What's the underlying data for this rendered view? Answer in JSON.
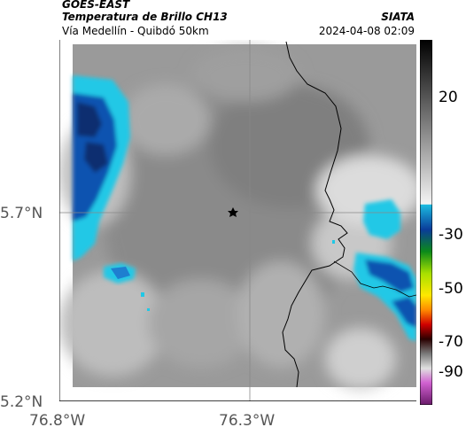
{
  "header": {
    "satellite": "GOES-EAST",
    "product": "Temperatura de Brillo CH13",
    "route": "Vía Medellín - Quibdó 50km",
    "org": "SIATA",
    "datetime": "2024-04-08 02:09"
  },
  "map": {
    "lat_ticks": [
      "5.7°N",
      "5.2°N"
    ],
    "lon_ticks": [
      "76.8°W",
      "76.3°W"
    ],
    "marker": "star-marker"
  },
  "colorbar": {
    "ticks": [
      "20",
      "-30",
      "-50",
      "-70",
      "-90"
    ]
  },
  "colors": {
    "cloud_blue": "#0b52b0",
    "cloud_cyan": "#20c8e6",
    "clear_gray": "#909090"
  }
}
